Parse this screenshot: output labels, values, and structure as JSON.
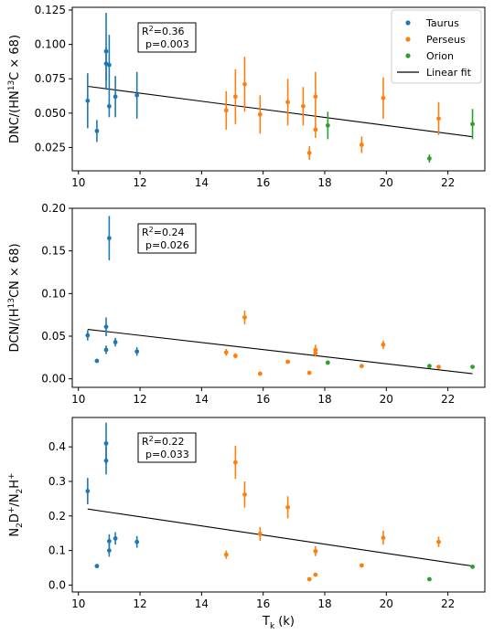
{
  "chart_data": [
    {
      "type": "scatter",
      "ylabel": "DNC/(HN$^{13}$C × 68)",
      "ylabel_parts": [
        "DNC/(HN",
        "13",
        "C × 68)"
      ],
      "xlim": [
        9.8,
        23.2
      ],
      "ylim": [
        0.008,
        0.127
      ],
      "yticks": [
        0.025,
        0.05,
        0.075,
        0.1,
        0.125
      ],
      "ytick_labels": [
        "0.025",
        "0.050",
        "0.075",
        "0.100",
        "0.125"
      ],
      "xticks": [
        10,
        12,
        14,
        16,
        18,
        20,
        22
      ],
      "xtick_labels": [
        "10",
        "12",
        "14",
        "16",
        "18",
        "20",
        "22"
      ],
      "stats": {
        "r2_prefix": "R",
        "r2_exp": "2",
        "r2_value": "=0.36",
        "p": "p=0.003"
      },
      "legend": {
        "placement": "top-right",
        "entries": [
          {
            "label": "Taurus",
            "kind": "marker",
            "color": "#1f77b4"
          },
          {
            "label": "Perseus",
            "kind": "marker",
            "color": "#ff7f0e"
          },
          {
            "label": "Orion",
            "kind": "marker",
            "color": "#2ca02c"
          },
          {
            "label": "Linear fit",
            "kind": "line",
            "color": "#000000"
          }
        ]
      },
      "fit": {
        "x": [
          10.3,
          22.8
        ],
        "y": [
          0.0695,
          0.0328
        ]
      },
      "series": [
        {
          "name": "Taurus",
          "color": "#1f77b4",
          "points": [
            {
              "x": 10.3,
              "y": 0.059,
              "err": 0.02
            },
            {
              "x": 10.6,
              "y": 0.037,
              "err": 0.008
            },
            {
              "x": 10.9,
              "y": 0.095,
              "err": 0.028
            },
            {
              "x": 10.9,
              "y": 0.086,
              "err": 0.012
            },
            {
              "x": 11.0,
              "y": 0.085,
              "err": 0.022
            },
            {
              "x": 11.0,
              "y": 0.055,
              "err": 0.008
            },
            {
              "x": 11.2,
              "y": 0.062,
              "err": 0.015
            },
            {
              "x": 11.9,
              "y": 0.063,
              "err": 0.017
            }
          ]
        },
        {
          "name": "Perseus",
          "color": "#ff7f0e",
          "points": [
            {
              "x": 14.8,
              "y": 0.052,
              "err": 0.014
            },
            {
              "x": 15.1,
              "y": 0.062,
              "err": 0.02
            },
            {
              "x": 15.4,
              "y": 0.071,
              "err": 0.02
            },
            {
              "x": 15.9,
              "y": 0.049,
              "err": 0.014
            },
            {
              "x": 16.8,
              "y": 0.058,
              "err": 0.017
            },
            {
              "x": 17.3,
              "y": 0.055,
              "err": 0.014
            },
            {
              "x": 17.5,
              "y": 0.021,
              "err": 0.005
            },
            {
              "x": 17.7,
              "y": 0.062,
              "err": 0.018
            },
            {
              "x": 17.7,
              "y": 0.038,
              "err": 0.006
            },
            {
              "x": 19.2,
              "y": 0.027,
              "err": 0.006
            },
            {
              "x": 19.9,
              "y": 0.061,
              "err": 0.015
            },
            {
              "x": 21.7,
              "y": 0.046,
              "err": 0.012
            }
          ]
        },
        {
          "name": "Orion",
          "color": "#2ca02c",
          "points": [
            {
              "x": 18.1,
              "y": 0.041,
              "err": 0.01
            },
            {
              "x": 21.4,
              "y": 0.017,
              "err": 0.003
            },
            {
              "x": 22.8,
              "y": 0.042,
              "err": 0.011
            }
          ]
        }
      ]
    },
    {
      "type": "scatter",
      "ylabel": "DCN/(H$^{13}$CN × 68)",
      "ylabel_parts": [
        "DCN/(H",
        "13",
        "CN × 68)"
      ],
      "xlim": [
        9.8,
        23.2
      ],
      "ylim": [
        -0.01,
        0.2
      ],
      "yticks": [
        0,
        0.05,
        0.1,
        0.15,
        0.2
      ],
      "ytick_labels": [
        "0.00",
        "0.05",
        "0.10",
        "0.15",
        "0.20"
      ],
      "xticks": [
        10,
        12,
        14,
        16,
        18,
        20,
        22
      ],
      "xtick_labels": [
        "10",
        "12",
        "14",
        "16",
        "18",
        "20",
        "22"
      ],
      "stats": {
        "r2_prefix": "R",
        "r2_exp": "2",
        "r2_value": "=0.24",
        "p": "p=0.026"
      },
      "fit": {
        "x": [
          10.3,
          22.8
        ],
        "y": [
          0.058,
          0.006
        ]
      },
      "series": [
        {
          "name": "Taurus",
          "color": "#1f77b4",
          "points": [
            {
              "x": 10.3,
              "y": 0.051,
              "err": 0.006
            },
            {
              "x": 10.6,
              "y": 0.021,
              "err": 0.002
            },
            {
              "x": 10.9,
              "y": 0.061,
              "err": 0.011
            },
            {
              "x": 10.9,
              "y": 0.034,
              "err": 0.005
            },
            {
              "x": 11.0,
              "y": 0.165,
              "err": 0.026
            },
            {
              "x": 11.2,
              "y": 0.043,
              "err": 0.005
            },
            {
              "x": 11.9,
              "y": 0.032,
              "err": 0.005
            }
          ]
        },
        {
          "name": "Perseus",
          "color": "#ff7f0e",
          "points": [
            {
              "x": 14.8,
              "y": 0.031,
              "err": 0.004
            },
            {
              "x": 15.1,
              "y": 0.027,
              "err": 0.003
            },
            {
              "x": 15.4,
              "y": 0.072,
              "err": 0.008
            },
            {
              "x": 15.9,
              "y": 0.006,
              "err": 0.001
            },
            {
              "x": 16.8,
              "y": 0.02,
              "err": 0.002
            },
            {
              "x": 17.5,
              "y": 0.007,
              "err": 0.001
            },
            {
              "x": 17.7,
              "y": 0.034,
              "err": 0.006
            },
            {
              "x": 17.7,
              "y": 0.03,
              "err": 0.004
            },
            {
              "x": 19.2,
              "y": 0.015,
              "err": 0.002
            },
            {
              "x": 19.9,
              "y": 0.04,
              "err": 0.005
            },
            {
              "x": 21.7,
              "y": 0.014,
              "err": 0.002
            }
          ]
        },
        {
          "name": "Orion",
          "color": "#2ca02c",
          "points": [
            {
              "x": 18.1,
              "y": 0.019,
              "err": 0.002
            },
            {
              "x": 21.4,
              "y": 0.015,
              "err": 0.002
            },
            {
              "x": 22.8,
              "y": 0.014,
              "err": 0.002
            }
          ]
        }
      ]
    },
    {
      "type": "scatter",
      "ylabel": "N$_2$D$^+$/N$_2$H$^+$",
      "xlabel": "T$_k$ (k)",
      "xlabel_parts": [
        "T",
        "k",
        " (k)"
      ],
      "xlim": [
        9.8,
        23.2
      ],
      "ylim": [
        -0.02,
        0.485
      ],
      "yticks": [
        0,
        0.1,
        0.2,
        0.3,
        0.4
      ],
      "ytick_labels": [
        "0.0",
        "0.1",
        "0.2",
        "0.3",
        "0.4"
      ],
      "xticks": [
        10,
        12,
        14,
        16,
        18,
        20,
        22
      ],
      "xtick_labels": [
        "10",
        "12",
        "14",
        "16",
        "18",
        "20",
        "22"
      ],
      "stats": {
        "r2_prefix": "R",
        "r2_exp": "2",
        "r2_value": "=0.22",
        "p": "p=0.033"
      },
      "fit": {
        "x": [
          10.3,
          22.8
        ],
        "y": [
          0.22,
          0.055
        ]
      },
      "series": [
        {
          "name": "Taurus",
          "color": "#1f77b4",
          "points": [
            {
              "x": 10.3,
              "y": 0.272,
              "err": 0.038
            },
            {
              "x": 10.6,
              "y": 0.055,
              "err": 0.004
            },
            {
              "x": 10.9,
              "y": 0.41,
              "err": 0.06
            },
            {
              "x": 10.9,
              "y": 0.36,
              "err": 0.04
            },
            {
              "x": 11.0,
              "y": 0.127,
              "err": 0.02
            },
            {
              "x": 11.0,
              "y": 0.1,
              "err": 0.018
            },
            {
              "x": 11.2,
              "y": 0.135,
              "err": 0.018
            },
            {
              "x": 11.9,
              "y": 0.125,
              "err": 0.017
            }
          ]
        },
        {
          "name": "Perseus",
          "color": "#ff7f0e",
          "points": [
            {
              "x": 14.8,
              "y": 0.088,
              "err": 0.012
            },
            {
              "x": 15.1,
              "y": 0.355,
              "err": 0.048
            },
            {
              "x": 15.4,
              "y": 0.262,
              "err": 0.038
            },
            {
              "x": 15.9,
              "y": 0.148,
              "err": 0.02
            },
            {
              "x": 16.8,
              "y": 0.225,
              "err": 0.032
            },
            {
              "x": 17.5,
              "y": 0.017,
              "err": 0.002
            },
            {
              "x": 17.7,
              "y": 0.098,
              "err": 0.014
            },
            {
              "x": 17.7,
              "y": 0.03,
              "err": 0.003
            },
            {
              "x": 19.2,
              "y": 0.057,
              "err": 0.006
            },
            {
              "x": 19.9,
              "y": 0.137,
              "err": 0.02
            },
            {
              "x": 21.7,
              "y": 0.125,
              "err": 0.015
            }
          ]
        },
        {
          "name": "Orion",
          "color": "#2ca02c",
          "points": [
            {
              "x": 21.4,
              "y": 0.017,
              "err": 0.002
            },
            {
              "x": 22.8,
              "y": 0.053,
              "err": 0.004
            }
          ]
        }
      ]
    }
  ]
}
